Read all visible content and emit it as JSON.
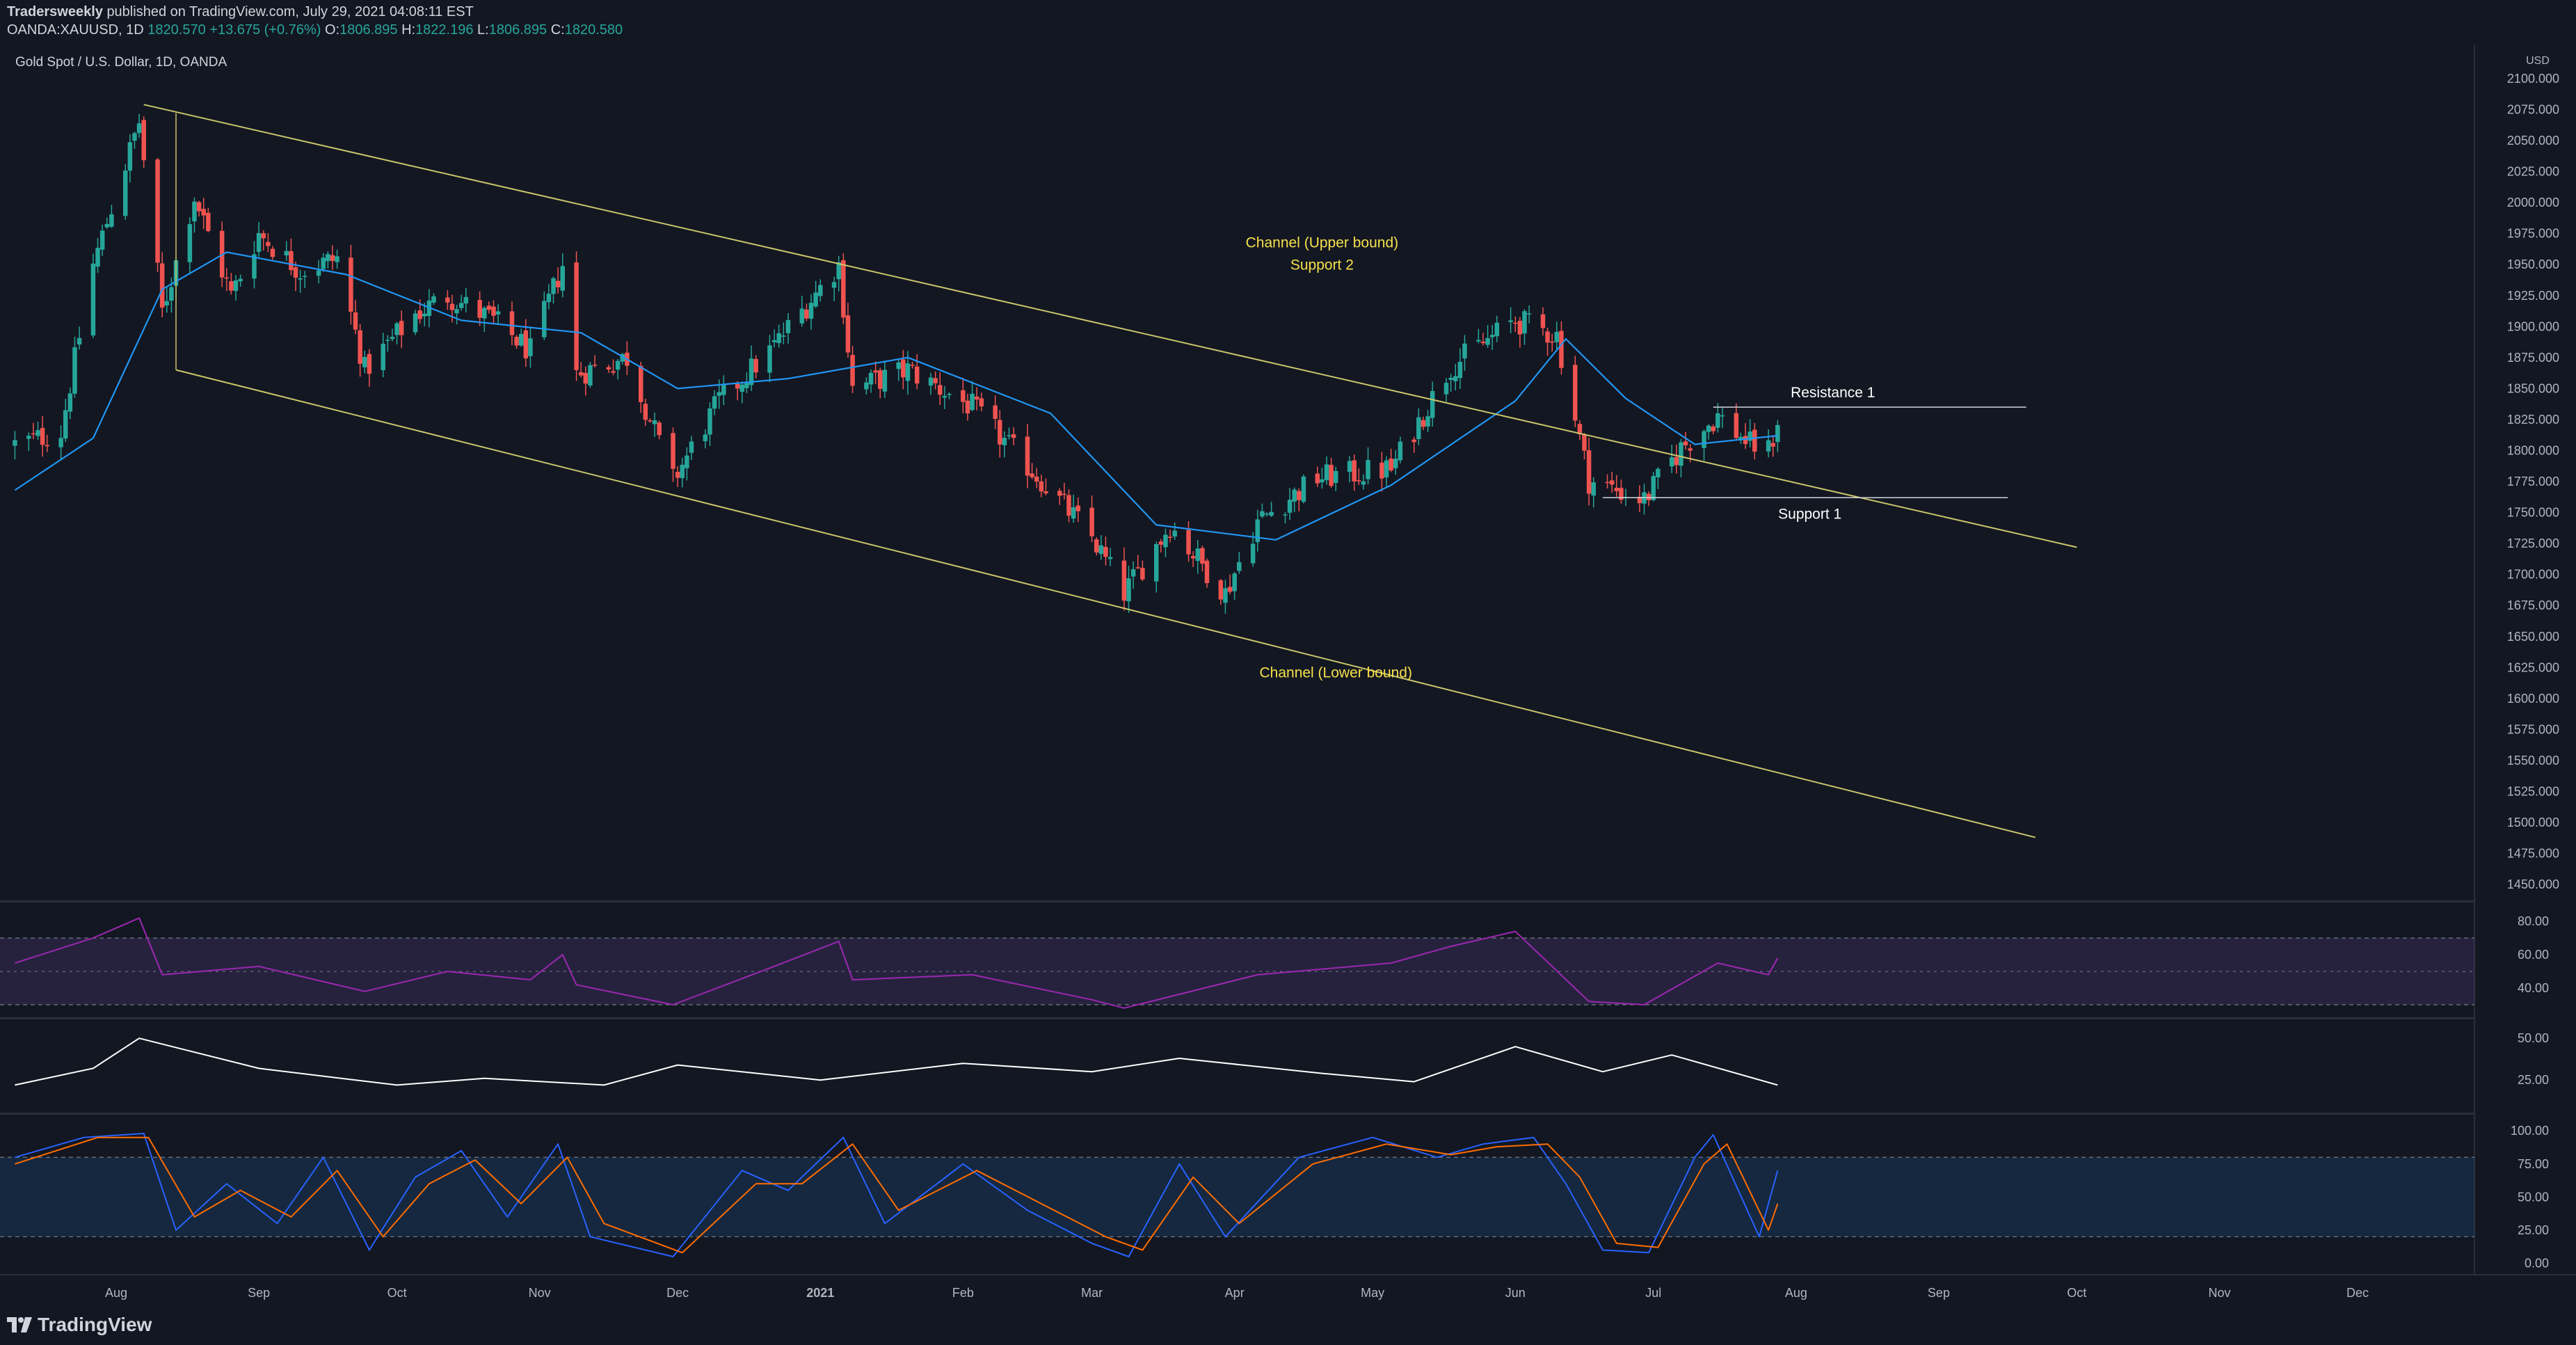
{
  "header": {
    "publisher": "Tradersweekly",
    "published_text": "published on TradingView.com, July 29, 2021 04:08:11 EST",
    "symbol_line": "OANDA:XAUUSD, 1D",
    "price": "1820.570",
    "change": "+13.675 (+0.76%)",
    "o_label": "O:",
    "o_value": "1806.895",
    "h_label": "H:",
    "h_value": "1822.196",
    "l_label": "L:",
    "l_value": "1806.895",
    "c_label": "C:",
    "c_value": "1820.580"
  },
  "footer": {
    "brand": "TradingView"
  },
  "colors": {
    "bg": "#131722",
    "up": "#26a69a",
    "down": "#ef5350",
    "ma": "#2196f3",
    "channel": "#c9c56b",
    "rsi": "#9c27b0",
    "stoch_k": "#2962ff",
    "stoch_d": "#ff6d00"
  },
  "chart_data": {
    "type": "candlestick",
    "title": "Gold Spot / U.S. Dollar, 1D, OANDA",
    "currency": "USD",
    "x_tick_labels": [
      "Aug",
      "Sep",
      "Oct",
      "Nov",
      "Dec",
      "2021",
      "Feb",
      "Mar",
      "Apr",
      "May",
      "Jun",
      "Jul",
      "Aug",
      "Sep",
      "Oct",
      "Nov",
      "Dec"
    ],
    "y_ticks": [
      2100,
      2075,
      2050,
      2025,
      2000,
      1975,
      1950,
      1925,
      1900,
      1875,
      1850,
      1825,
      1800,
      1775,
      1750,
      1725,
      1700,
      1675,
      1650,
      1625,
      1600,
      1575,
      1550,
      1525,
      1500,
      1475,
      1450
    ],
    "y_tick_labels": [
      "2100.000",
      "2075.000",
      "2050.000",
      "2025.000",
      "2000.000",
      "1975.000",
      "1950.000",
      "1925.000",
      "1900.000",
      "1875.000",
      "1850.000",
      "1825.000",
      "1800.000",
      "1775.000",
      "1750.000",
      "1725.000",
      "1700.000",
      "1675.000",
      "1650.000",
      "1625.000",
      "1600.000",
      "1575.000",
      "1550.000",
      "1525.000",
      "1500.000",
      "1475.000",
      "1450.000"
    ],
    "ylim": [
      1440,
      2105
    ],
    "price_path": [
      [
        "2020-07-10",
        1805
      ],
      [
        "2020-07-20",
        1815
      ],
      [
        "2020-07-27",
        1950
      ],
      [
        "2020-08-06",
        2065
      ],
      [
        "2020-08-11",
        1912
      ],
      [
        "2020-08-18",
        2005
      ],
      [
        "2020-08-26",
        1925
      ],
      [
        "2020-09-01",
        1975
      ],
      [
        "2020-09-10",
        1945
      ],
      [
        "2020-09-18",
        1955
      ],
      [
        "2020-09-24",
        1865
      ],
      [
        "2020-10-05",
        1910
      ],
      [
        "2020-10-12",
        1925
      ],
      [
        "2020-10-22",
        1905
      ],
      [
        "2020-10-30",
        1880
      ],
      [
        "2020-11-06",
        1950
      ],
      [
        "2020-11-09",
        1862
      ],
      [
        "2020-11-20",
        1875
      ],
      [
        "2020-11-30",
        1776
      ],
      [
        "2020-12-10",
        1840
      ],
      [
        "2020-12-21",
        1880
      ],
      [
        "2021-01-05",
        1950
      ],
      [
        "2021-01-08",
        1850
      ],
      [
        "2021-01-20",
        1865
      ],
      [
        "2021-02-03",
        1835
      ],
      [
        "2021-02-18",
        1776
      ],
      [
        "2021-03-01",
        1730
      ],
      [
        "2021-03-08",
        1685
      ],
      [
        "2021-03-18",
        1740
      ],
      [
        "2021-03-30",
        1685
      ],
      [
        "2021-04-06",
        1743
      ],
      [
        "2021-04-19",
        1778
      ],
      [
        "2021-05-05",
        1785
      ],
      [
        "2021-05-18",
        1868
      ],
      [
        "2021-06-01",
        1905
      ],
      [
        "2021-06-10",
        1893
      ],
      [
        "2021-06-17",
        1776
      ],
      [
        "2021-06-29",
        1760
      ],
      [
        "2021-07-07",
        1802
      ],
      [
        "2021-07-15",
        1828
      ],
      [
        "2021-07-22",
        1805
      ],
      [
        "2021-07-26",
        1800
      ],
      [
        "2021-07-28",
        1820.58
      ]
    ],
    "ma_path": [
      [
        "2020-07-10",
        1768
      ],
      [
        "2020-07-27",
        1810
      ],
      [
        "2020-08-11",
        1930
      ],
      [
        "2020-08-25",
        1960
      ],
      [
        "2020-09-20",
        1942
      ],
      [
        "2020-10-15",
        1905
      ],
      [
        "2020-11-10",
        1895
      ],
      [
        "2020-12-01",
        1850
      ],
      [
        "2020-12-25",
        1858
      ],
      [
        "2021-01-20",
        1875
      ],
      [
        "2021-02-20",
        1830
      ],
      [
        "2021-03-15",
        1740
      ],
      [
        "2021-04-10",
        1728
      ],
      [
        "2021-05-05",
        1772
      ],
      [
        "2021-06-01",
        1840
      ],
      [
        "2021-06-12",
        1890
      ],
      [
        "2021-06-25",
        1842
      ],
      [
        "2021-07-10",
        1805
      ],
      [
        "2021-07-28",
        1812
      ]
    ],
    "channel_upper": {
      "start": [
        "2020-08-07",
        2079
      ],
      "end": [
        "2021-10-01",
        1722
      ]
    },
    "channel_lower": {
      "start": [
        "2020-08-14",
        1865
      ],
      "end": [
        "2021-09-22",
        1488
      ]
    },
    "channel_upper_left_x": "2020-08-14",
    "resistance_1": {
      "from": "2021-07-14",
      "to": "2021-09-20",
      "value": 1835
    },
    "support_1": {
      "from": "2021-06-20",
      "to": "2021-09-16",
      "value": 1762
    },
    "annotations": [
      {
        "text": "Channel (Upper bound)",
        "date": "2021-04-20",
        "value": 1964
      },
      {
        "text": "Support 2",
        "date": "2021-04-20",
        "value": 1946
      },
      {
        "text": "Channel (Lower bound)",
        "date": "2021-04-23",
        "value": 1617
      },
      {
        "text": "Resistance 1",
        "date": "2021-08-09",
        "value": 1843
      },
      {
        "text": "Support 1",
        "date": "2021-08-04",
        "value": 1745
      }
    ],
    "last_date": "2021-07-28",
    "rsi": {
      "ticks": [
        80,
        60,
        40
      ],
      "tick_labels": [
        "80.00",
        "60.00",
        "40.00"
      ],
      "ylim": [
        25,
        88
      ],
      "bands": [
        30,
        70
      ],
      "path": [
        [
          "2020-07-10",
          55
        ],
        [
          "2020-07-27",
          70
        ],
        [
          "2020-08-06",
          82
        ],
        [
          "2020-08-11",
          48
        ],
        [
          "2020-09-01",
          53
        ],
        [
          "2020-09-24",
          38
        ],
        [
          "2020-10-12",
          50
        ],
        [
          "2020-10-30",
          45
        ],
        [
          "2020-11-06",
          60
        ],
        [
          "2020-11-09",
          42
        ],
        [
          "2020-11-30",
          30
        ],
        [
          "2020-12-21",
          52
        ],
        [
          "2021-01-05",
          68
        ],
        [
          "2021-01-08",
          45
        ],
        [
          "2021-02-03",
          48
        ],
        [
          "2021-03-01",
          33
        ],
        [
          "2021-03-08",
          28
        ],
        [
          "2021-04-06",
          48
        ],
        [
          "2021-05-05",
          55
        ],
        [
          "2021-05-18",
          65
        ],
        [
          "2021-06-01",
          74
        ],
        [
          "2021-06-17",
          32
        ],
        [
          "2021-06-29",
          30
        ],
        [
          "2021-07-15",
          55
        ],
        [
          "2021-07-26",
          48
        ],
        [
          "2021-07-28",
          58
        ]
      ]
    },
    "adx": {
      "ticks": [
        50,
        25
      ],
      "tick_labels": [
        "50.00",
        "25.00"
      ],
      "ylim": [
        8,
        58
      ],
      "path": [
        [
          "2020-07-10",
          22
        ],
        [
          "2020-07-27",
          32
        ],
        [
          "2020-08-06",
          50
        ],
        [
          "2020-09-01",
          32
        ],
        [
          "2020-10-01",
          22
        ],
        [
          "2020-10-20",
          26
        ],
        [
          "2020-11-15",
          22
        ],
        [
          "2020-12-01",
          34
        ],
        [
          "2021-01-01",
          25
        ],
        [
          "2021-02-01",
          35
        ],
        [
          "2021-03-01",
          30
        ],
        [
          "2021-03-20",
          38
        ],
        [
          "2021-04-20",
          29
        ],
        [
          "2021-05-10",
          24
        ],
        [
          "2021-06-01",
          45
        ],
        [
          "2021-06-20",
          30
        ],
        [
          "2021-07-05",
          40
        ],
        [
          "2021-07-28",
          22
        ]
      ]
    },
    "stoch": {
      "ticks": [
        100,
        75,
        50,
        25,
        0
      ],
      "tick_labels": [
        "100.00",
        "75.00",
        "50.00",
        "25.00",
        "0.00"
      ],
      "ylim": [
        -5,
        108
      ],
      "bands": [
        20,
        80
      ],
      "k_path": [
        [
          "2020-07-10",
          80
        ],
        [
          "2020-07-25",
          95
        ],
        [
          "2020-08-07",
          98
        ],
        [
          "2020-08-14",
          25
        ],
        [
          "2020-08-25",
          60
        ],
        [
          "2020-09-05",
          30
        ],
        [
          "2020-09-15",
          80
        ],
        [
          "2020-09-25",
          10
        ],
        [
          "2020-10-05",
          65
        ],
        [
          "2020-10-15",
          85
        ],
        [
          "2020-10-25",
          35
        ],
        [
          "2020-11-05",
          90
        ],
        [
          "2020-11-12",
          20
        ],
        [
          "2020-11-30",
          5
        ],
        [
          "2020-12-15",
          70
        ],
        [
          "2020-12-25",
          55
        ],
        [
          "2021-01-06",
          95
        ],
        [
          "2021-01-15",
          30
        ],
        [
          "2021-02-01",
          75
        ],
        [
          "2021-02-15",
          40
        ],
        [
          "2021-03-01",
          15
        ],
        [
          "2021-03-09",
          5
        ],
        [
          "2021-03-20",
          75
        ],
        [
          "2021-03-30",
          20
        ],
        [
          "2021-04-15",
          80
        ],
        [
          "2021-05-01",
          95
        ],
        [
          "2021-05-15",
          80
        ],
        [
          "2021-05-25",
          90
        ],
        [
          "2021-06-05",
          95
        ],
        [
          "2021-06-12",
          60
        ],
        [
          "2021-06-20",
          10
        ],
        [
          "2021-06-30",
          8
        ],
        [
          "2021-07-10",
          80
        ],
        [
          "2021-07-14",
          97
        ],
        [
          "2021-07-24",
          20
        ],
        [
          "2021-07-28",
          70
        ]
      ],
      "d_path": [
        [
          "2020-07-10",
          75
        ],
        [
          "2020-07-28",
          95
        ],
        [
          "2020-08-08",
          95
        ],
        [
          "2020-08-18",
          35
        ],
        [
          "2020-08-28",
          55
        ],
        [
          "2020-09-08",
          35
        ],
        [
          "2020-09-18",
          70
        ],
        [
          "2020-09-28",
          20
        ],
        [
          "2020-10-08",
          60
        ],
        [
          "2020-10-18",
          78
        ],
        [
          "2020-10-28",
          45
        ],
        [
          "2020-11-07",
          80
        ],
        [
          "2020-11-15",
          30
        ],
        [
          "2020-12-02",
          8
        ],
        [
          "2020-12-18",
          60
        ],
        [
          "2020-12-28",
          60
        ],
        [
          "2021-01-08",
          90
        ],
        [
          "2021-01-18",
          40
        ],
        [
          "2021-02-04",
          70
        ],
        [
          "2021-02-18",
          45
        ],
        [
          "2021-03-04",
          20
        ],
        [
          "2021-03-12",
          10
        ],
        [
          "2021-03-23",
          65
        ],
        [
          "2021-04-02",
          30
        ],
        [
          "2021-04-18",
          75
        ],
        [
          "2021-05-04",
          90
        ],
        [
          "2021-05-18",
          82
        ],
        [
          "2021-05-28",
          88
        ],
        [
          "2021-06-08",
          90
        ],
        [
          "2021-06-15",
          65
        ],
        [
          "2021-06-23",
          15
        ],
        [
          "2021-07-02",
          12
        ],
        [
          "2021-07-12",
          75
        ],
        [
          "2021-07-17",
          90
        ],
        [
          "2021-07-26",
          25
        ],
        [
          "2021-07-28",
          45
        ]
      ]
    }
  }
}
